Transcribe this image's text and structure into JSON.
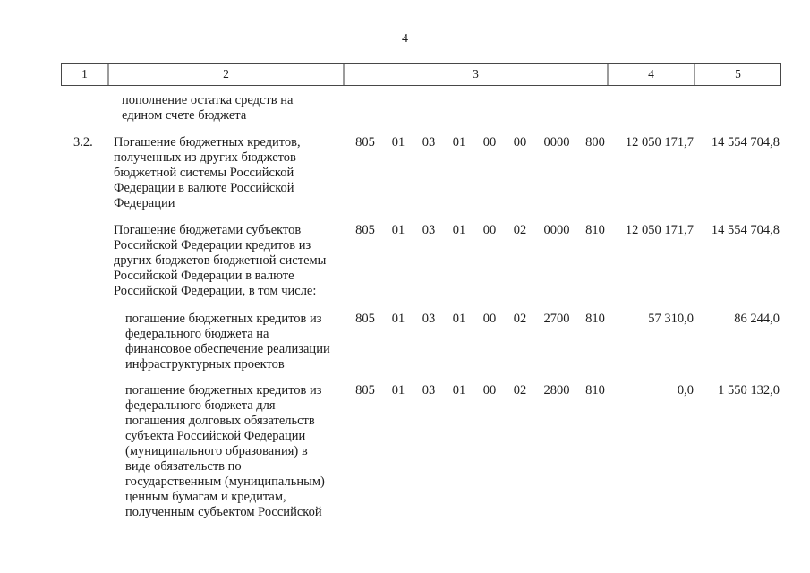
{
  "page_number": "4",
  "table": {
    "header": [
      "1",
      "2",
      "3",
      "4",
      "5"
    ],
    "rows": [
      {
        "num": "",
        "text": "пополнение остатка средств на\nедином счете бюджета",
        "codes": [
          "",
          "",
          "",
          "",
          "",
          "",
          "",
          ""
        ],
        "amount1": "",
        "amount2": ""
      },
      {
        "num": "3.2.",
        "text": "Погашение бюджетных кредитов,\nполученных из других бюджетов\nбюджетной системы Российской\nФедерации в валюте Российской\nФедерации",
        "codes": [
          "805",
          "01",
          "03",
          "01",
          "00",
          "00",
          "0000",
          "800"
        ],
        "amount1": "12 050 171,7",
        "amount2": "14 554 704,8"
      },
      {
        "num": "",
        "text": "Погашение бюджетами субъектов\nРоссийской Федерации кредитов из\nдругих бюджетов бюджетной системы\nРоссийской Федерации в валюте\nРоссийской Федерации, в том числе:",
        "codes": [
          "805",
          "01",
          "03",
          "01",
          "00",
          "02",
          "0000",
          "810"
        ],
        "amount1": "12 050 171,7",
        "amount2": "14 554 704,8"
      },
      {
        "num": "",
        "text": "погашение бюджетных кредитов из\nфедерального бюджета на\nфинансовое обеспечение реализации\nинфраструктурных проектов",
        "codes": [
          "805",
          "01",
          "03",
          "01",
          "00",
          "02",
          "2700",
          "810"
        ],
        "amount1": "57 310,0",
        "amount2": "86 244,0"
      },
      {
        "num": "",
        "text": "погашение бюджетных кредитов из\nфедерального бюджета для\nпогашения долговых обязательств\nсубъекта Российской Федерации\n(муниципального образования) в\nвиде обязательств по\nгосударственным (муниципальным)\nценным бумагам и кредитам,\nполученным субъектом Российской",
        "codes": [
          "805",
          "01",
          "03",
          "01",
          "00",
          "02",
          "2800",
          "810"
        ],
        "amount1": "0,0",
        "amount2": "1 550 132,0"
      }
    ]
  }
}
